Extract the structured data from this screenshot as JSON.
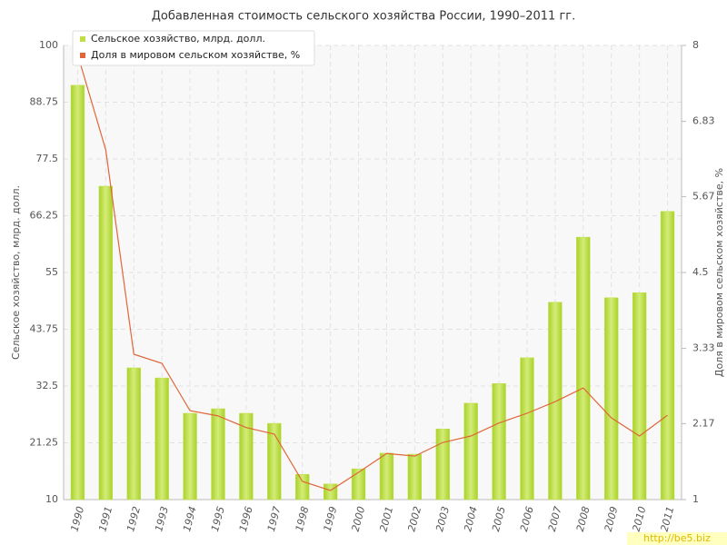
{
  "chart_data": {
    "type": "bar",
    "title": "Добавленная стоимость сельского хозяйства России, 1990–2011 гг.",
    "y_label": "Сельское хозяйство, млрд. долл.",
    "y2_label": "Доля в мировом сельском хозяйстве, %",
    "watermark": "http://be5.biz",
    "categories": [
      "1990",
      "1991",
      "1992",
      "1993",
      "1994",
      "1995",
      "1996",
      "1997",
      "1998",
      "1999",
      "2000",
      "2001",
      "2002",
      "2003",
      "2004",
      "2005",
      "2006",
      "2007",
      "2008",
      "2009",
      "2010",
      "2011"
    ],
    "series": [
      {
        "name": "Сельское хозяйство, млрд. долл.",
        "type": "bar",
        "color": "#bfdf45",
        "values": [
          92.1,
          72.1,
          36.1,
          34.1,
          27.1,
          28,
          27.1,
          25.1,
          15,
          13.1,
          16.1,
          19.2,
          19,
          24,
          29.1,
          33,
          38.1,
          49.1,
          62,
          50,
          51,
          67.1
        ]
      },
      {
        "name": "Доля в мировом сельском хозяйстве, %",
        "type": "line",
        "axis": "y2",
        "color": "#e0663a",
        "values": [
          7.86,
          6.39,
          3.24,
          3.1,
          2.37,
          2.29,
          2.11,
          2.01,
          1.28,
          1.14,
          1.42,
          1.71,
          1.67,
          1.88,
          1.98,
          2.18,
          2.33,
          2.51,
          2.72,
          2.26,
          1.98,
          2.3
        ]
      }
    ],
    "ylim": [
      10,
      100
    ],
    "yticks": [
      10,
      21.25,
      32.5,
      43.75,
      55,
      66.25,
      77.5,
      88.75,
      100
    ],
    "y2lim": [
      1,
      8
    ],
    "y2ticks": [
      1,
      2.17,
      3.33,
      4.5,
      5.67,
      6.83,
      8
    ],
    "grid": true,
    "legend": "top-left"
  }
}
